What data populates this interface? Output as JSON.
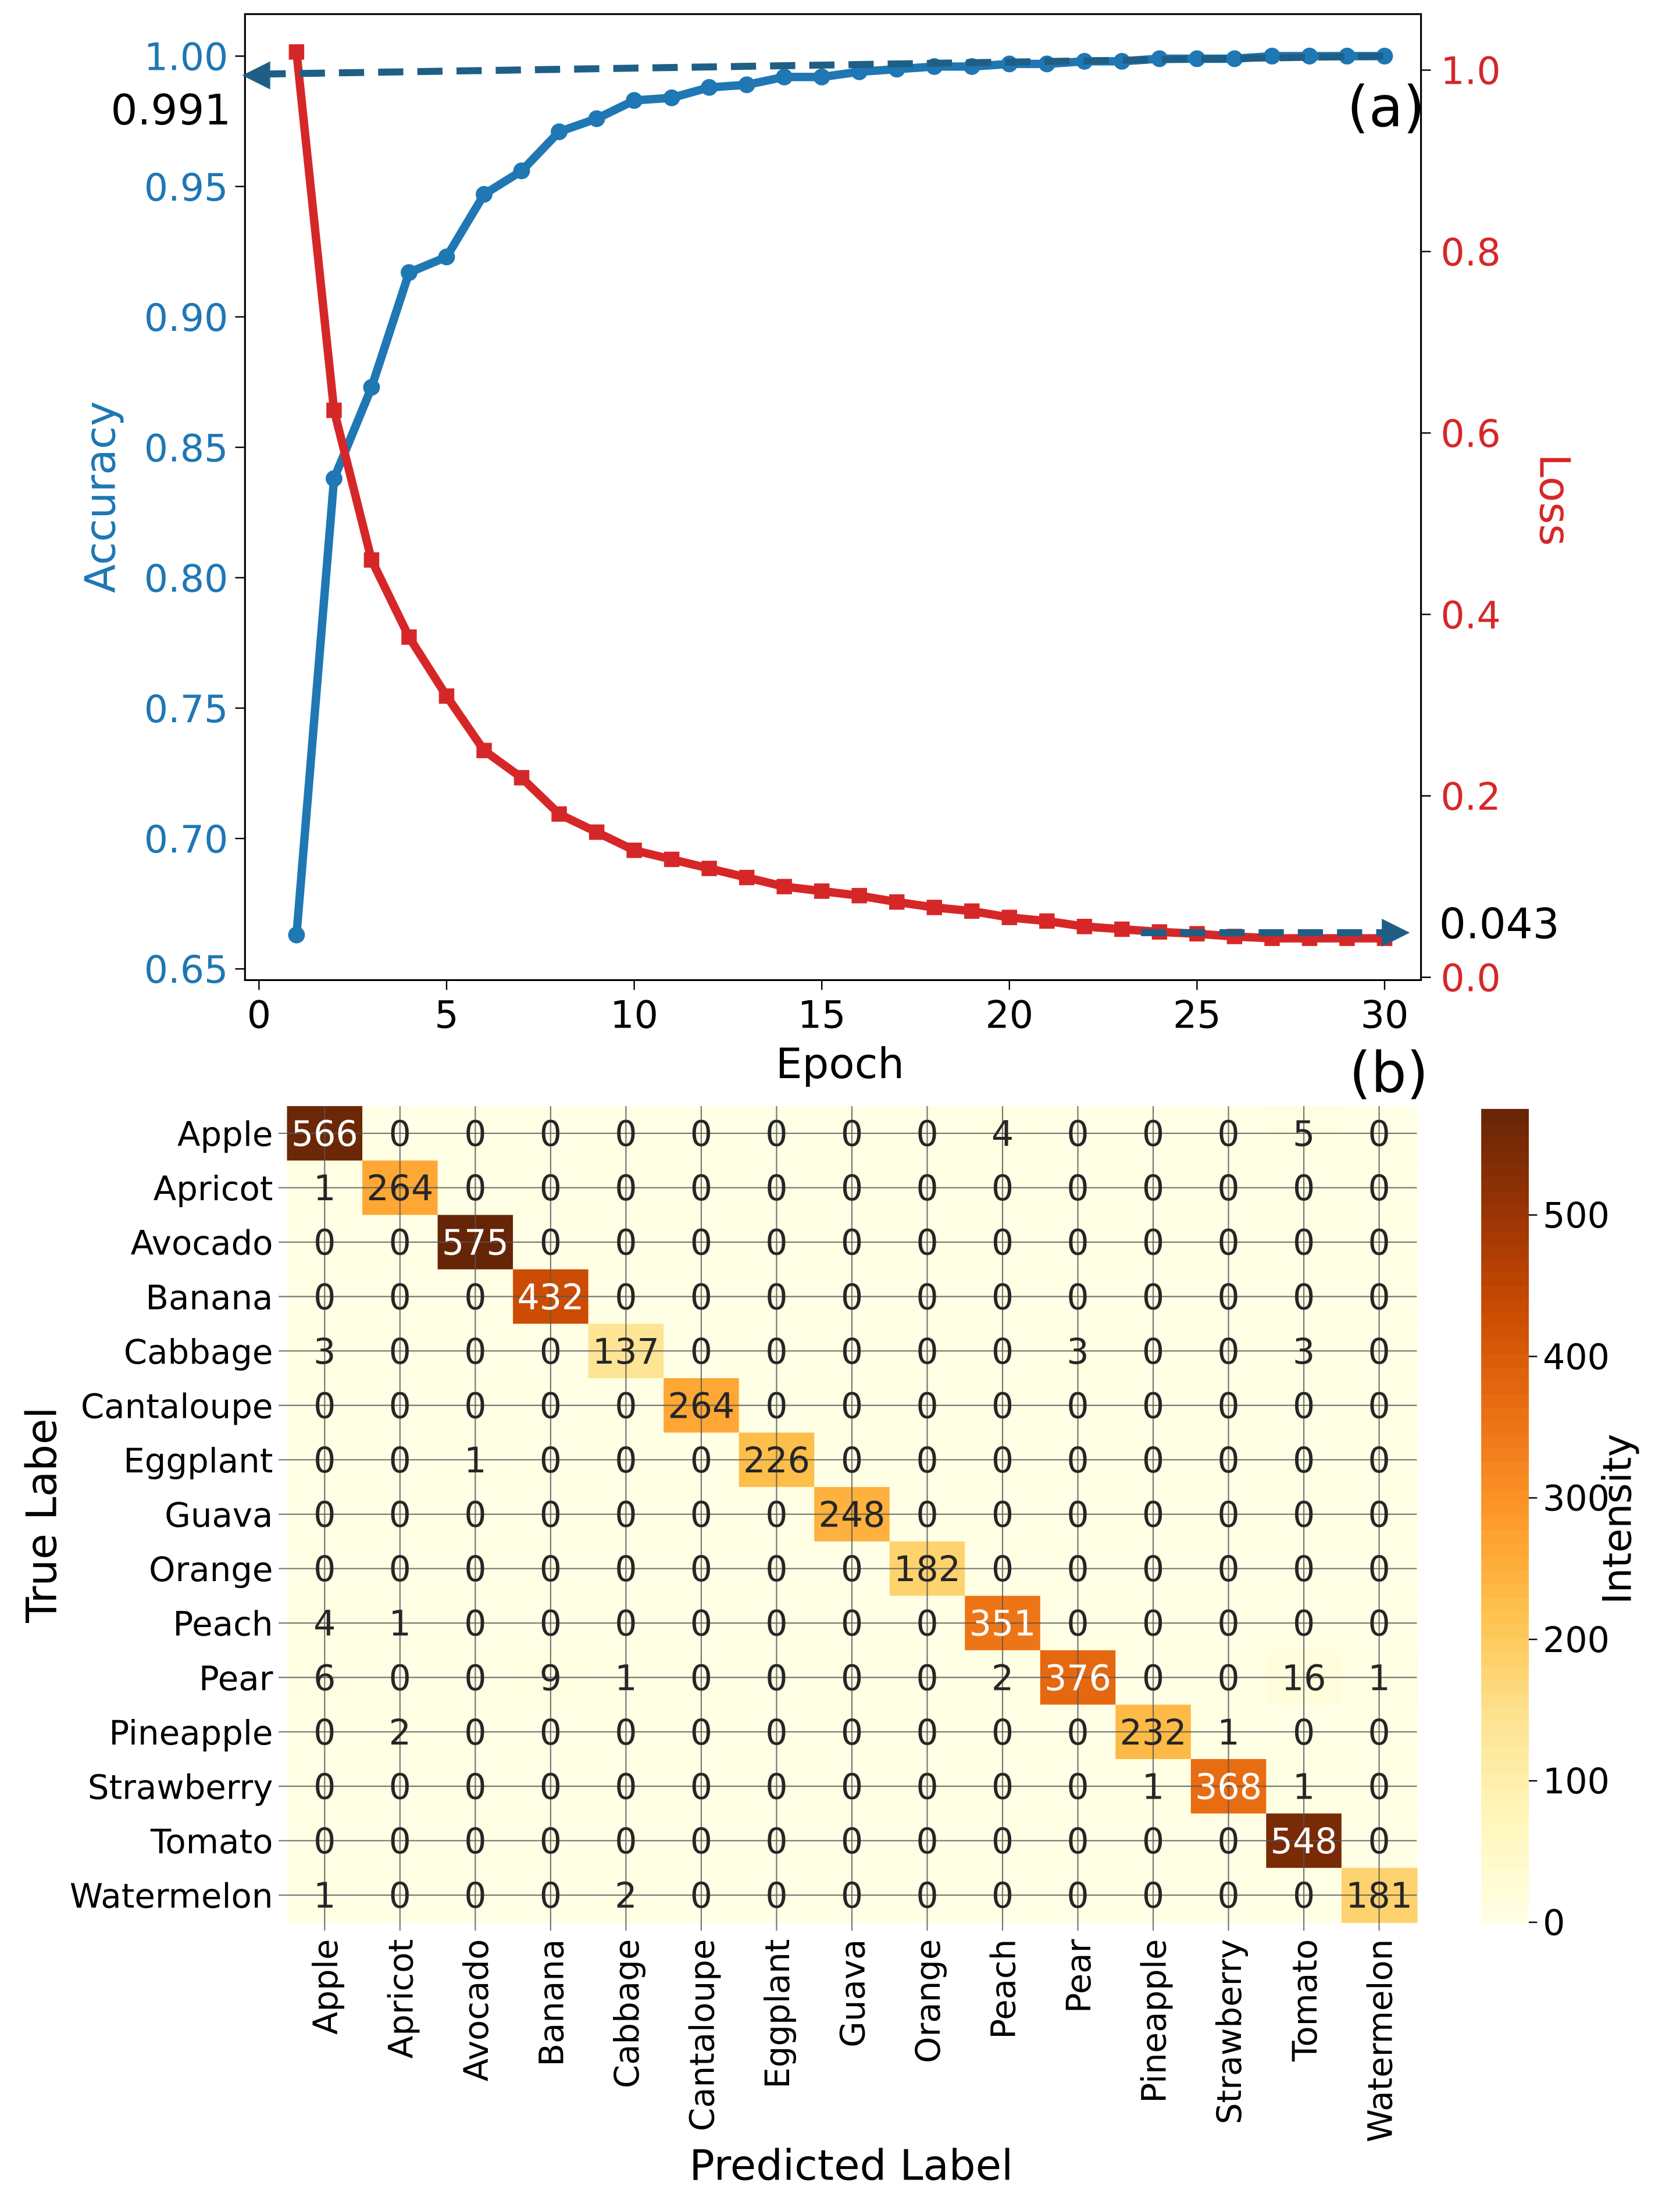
{
  "chart_data": [
    {
      "type": "line",
      "panel_label": "(a)",
      "xlabel": "Epoch",
      "ylabel_left": "Accuracy",
      "ylabel_right": "Loss",
      "xlim": [
        -0.4,
        31
      ],
      "ylim_left": [
        0.643,
        1.016
      ],
      "ylim_right": [
        0.0,
        1.08
      ],
      "xticks": [
        "0",
        "5",
        "10",
        "15",
        "20",
        "25",
        "30"
      ],
      "yticks_left": [
        "0.65",
        "0.70",
        "0.75",
        "0.80",
        "0.85",
        "0.90",
        "0.95",
        "1.00"
      ],
      "yticks_right": [
        "0.0",
        "0.2",
        "0.4",
        "0.6",
        "0.8",
        "1.0"
      ],
      "x": [
        1,
        2,
        3,
        4,
        5,
        6,
        7,
        8,
        9,
        10,
        11,
        12,
        13,
        14,
        15,
        16,
        17,
        18,
        19,
        20,
        21,
        22,
        23,
        24,
        25,
        26,
        27,
        28,
        29,
        30
      ],
      "series": [
        {
          "name": "Accuracy",
          "axis": "left",
          "color": "#1f77b4",
          "marker": "circle",
          "values": [
            0.663,
            0.838,
            0.873,
            0.917,
            0.923,
            0.947,
            0.956,
            0.971,
            0.976,
            0.983,
            0.984,
            0.988,
            0.989,
            0.992,
            0.992,
            0.994,
            0.995,
            0.996,
            0.996,
            0.997,
            0.997,
            0.998,
            0.998,
            0.999,
            0.999,
            0.999,
            1.0,
            1.0,
            1.0,
            1.0
          ]
        },
        {
          "name": "Loss",
          "axis": "right",
          "color": "#d62728",
          "marker": "square",
          "values": [
            1.02,
            0.625,
            0.46,
            0.375,
            0.31,
            0.25,
            0.22,
            0.18,
            0.16,
            0.14,
            0.13,
            0.12,
            0.11,
            0.1,
            0.095,
            0.09,
            0.083,
            0.077,
            0.073,
            0.066,
            0.062,
            0.056,
            0.053,
            0.05,
            0.048,
            0.045,
            0.043,
            0.043,
            0.043,
            0.043
          ]
        }
      ],
      "annotations": [
        {
          "text": "0.991",
          "axis": "left",
          "value": 0.991,
          "direction": "left",
          "color": "#1f5f85"
        },
        {
          "text": "0.043",
          "axis": "right",
          "value": 0.043,
          "direction": "right",
          "color": "#1f5f85"
        }
      ]
    },
    {
      "type": "heatmap",
      "panel_label": "(b)",
      "xlabel": "Predicted Label",
      "ylabel": "True Label",
      "colorbar_label": "Intensity",
      "colorbar_ticks": [
        "0",
        "100",
        "200",
        "300",
        "400",
        "500"
      ],
      "colorbar_range": [
        0,
        575
      ],
      "labels": [
        "Apple",
        "Apricot",
        "Avocado",
        "Banana",
        "Cabbage",
        "Cantaloupe",
        "Eggplant",
        "Guava",
        "Orange",
        "Peach",
        "Pear",
        "Pineapple",
        "Strawberry",
        "Tomato",
        "Watermelon"
      ],
      "matrix": [
        [
          566,
          0,
          0,
          0,
          0,
          0,
          0,
          0,
          0,
          4,
          0,
          0,
          0,
          5,
          0
        ],
        [
          1,
          264,
          0,
          0,
          0,
          0,
          0,
          0,
          0,
          0,
          0,
          0,
          0,
          0,
          0
        ],
        [
          0,
          0,
          575,
          0,
          0,
          0,
          0,
          0,
          0,
          0,
          0,
          0,
          0,
          0,
          0
        ],
        [
          0,
          0,
          0,
          432,
          0,
          0,
          0,
          0,
          0,
          0,
          0,
          0,
          0,
          0,
          0
        ],
        [
          3,
          0,
          0,
          0,
          137,
          0,
          0,
          0,
          0,
          0,
          3,
          0,
          0,
          3,
          0
        ],
        [
          0,
          0,
          0,
          0,
          0,
          264,
          0,
          0,
          0,
          0,
          0,
          0,
          0,
          0,
          0
        ],
        [
          0,
          0,
          1,
          0,
          0,
          0,
          226,
          0,
          0,
          0,
          0,
          0,
          0,
          0,
          0
        ],
        [
          0,
          0,
          0,
          0,
          0,
          0,
          0,
          248,
          0,
          0,
          0,
          0,
          0,
          0,
          0
        ],
        [
          0,
          0,
          0,
          0,
          0,
          0,
          0,
          0,
          182,
          0,
          0,
          0,
          0,
          0,
          0
        ],
        [
          4,
          1,
          0,
          0,
          0,
          0,
          0,
          0,
          0,
          351,
          0,
          0,
          0,
          0,
          0
        ],
        [
          6,
          0,
          0,
          9,
          1,
          0,
          0,
          0,
          0,
          2,
          376,
          0,
          0,
          16,
          1
        ],
        [
          0,
          2,
          0,
          0,
          0,
          0,
          0,
          0,
          0,
          0,
          0,
          232,
          1,
          0,
          0
        ],
        [
          0,
          0,
          0,
          0,
          0,
          0,
          0,
          0,
          0,
          0,
          0,
          1,
          368,
          1,
          0
        ],
        [
          0,
          0,
          0,
          0,
          0,
          0,
          0,
          0,
          0,
          0,
          0,
          0,
          0,
          548,
          0
        ],
        [
          1,
          0,
          0,
          0,
          2,
          0,
          0,
          0,
          0,
          0,
          0,
          0,
          0,
          0,
          181
        ]
      ]
    }
  ]
}
